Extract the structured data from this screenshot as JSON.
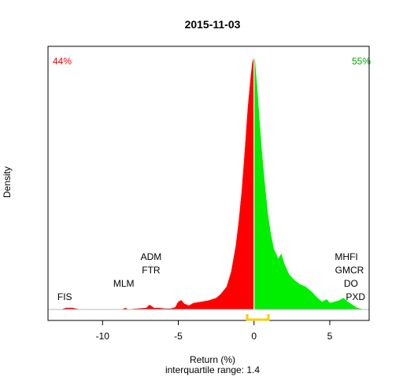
{
  "chart_data": {
    "type": "area",
    "title": "2015-11-03",
    "xlabel": "Return (%)",
    "ylabel": "Density",
    "subtitle": "interquartile range: 1.4",
    "xlim": [
      -13.6,
      7.6
    ],
    "ylim": [
      0,
      1
    ],
    "xticks": [
      -10,
      -5,
      0,
      5
    ],
    "xtick_labels": [
      "-10",
      "-5",
      "0",
      "5"
    ],
    "left_percent": "44%",
    "right_percent": "55%",
    "split_x": 0,
    "iqr": [
      -0.45,
      0.95
    ],
    "colors": {
      "negative": "#ff0000",
      "positive": "#00ee00",
      "iqr_bracket": "#ffcc00",
      "left_percent": "#ff0000",
      "right_percent": "#00aa00",
      "zero_line": "#ffffff"
    },
    "density": {
      "x": [
        -12.7,
        -12.4,
        -12.0,
        -11.5,
        -8.7,
        -8.5,
        -8.3,
        -7.1,
        -6.9,
        -6.6,
        -6.3,
        -5.9,
        -5.5,
        -5.2,
        -5.0,
        -4.8,
        -4.6,
        -4.3,
        -4.0,
        -3.5,
        -3.0,
        -2.5,
        -2.2,
        -1.8,
        -1.5,
        -1.2,
        -1.0,
        -0.8,
        -0.6,
        -0.4,
        -0.2,
        -0.1,
        0.0,
        0.05,
        0.1,
        0.2,
        0.35,
        0.5,
        0.7,
        0.9,
        1.1,
        1.3,
        1.6,
        1.8,
        2.0,
        2.3,
        2.6,
        3.0,
        3.4,
        3.8,
        4.2,
        4.5,
        4.8,
        5.0,
        5.3,
        5.6,
        5.9,
        6.2,
        6.5,
        6.8,
        7.2
      ],
      "y": [
        0.0,
        0.006,
        0.006,
        0.0,
        0.0,
        0.006,
        0.0,
        0.006,
        0.018,
        0.006,
        0.006,
        0.003,
        0.003,
        0.008,
        0.03,
        0.036,
        0.022,
        0.015,
        0.025,
        0.03,
        0.035,
        0.045,
        0.06,
        0.09,
        0.15,
        0.25,
        0.35,
        0.47,
        0.63,
        0.8,
        0.93,
        0.98,
        1.0,
        0.99,
        0.95,
        0.88,
        0.75,
        0.63,
        0.5,
        0.38,
        0.3,
        0.24,
        0.2,
        0.22,
        0.18,
        0.14,
        0.12,
        0.1,
        0.09,
        0.07,
        0.045,
        0.03,
        0.04,
        0.025,
        0.03,
        0.035,
        0.045,
        0.03,
        0.018,
        0.006,
        0.0
      ]
    },
    "annotations": [
      {
        "text": "FIS",
        "x": -12.5,
        "row": 1
      },
      {
        "text": "MLM",
        "x": -8.6,
        "row": 2
      },
      {
        "text": "ADM",
        "x": -6.8,
        "row": 4
      },
      {
        "text": "FTR",
        "x": -6.8,
        "row": 3
      },
      {
        "text": "MHFI",
        "x": 6.1,
        "row": 4
      },
      {
        "text": "GMCR",
        "x": 6.3,
        "row": 3
      },
      {
        "text": "DO",
        "x": 6.4,
        "row": 2
      },
      {
        "text": "PXD",
        "x": 6.7,
        "row": 1
      }
    ]
  }
}
